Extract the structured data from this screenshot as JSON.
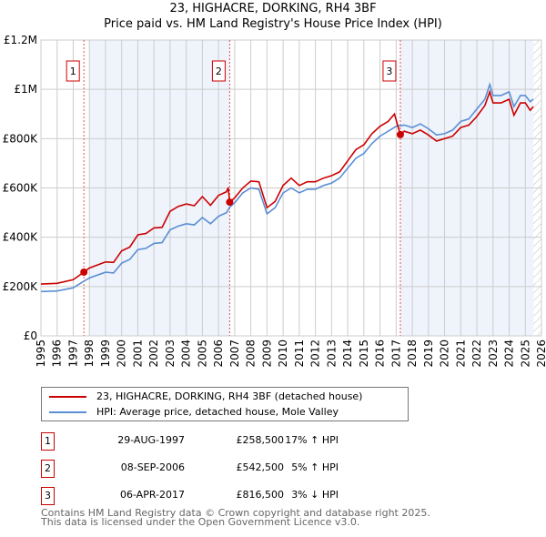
{
  "title_line1": "23, HIGHACRE, DORKING, RH4 3BF",
  "title_line2": "Price paid vs. HM Land Registry's House Price Index (HPI)",
  "chart_data": {
    "type": "line",
    "ylim": [
      0,
      1200000
    ],
    "xlim": [
      1995,
      2026
    ],
    "y_ticks": [
      {
        "v": 0,
        "label": "£0"
      },
      {
        "v": 200000,
        "label": "£200K"
      },
      {
        "v": 400000,
        "label": "£400K"
      },
      {
        "v": 600000,
        "label": "£600K"
      },
      {
        "v": 800000,
        "label": "£800K"
      },
      {
        "v": 1000000,
        "label": "£1M"
      },
      {
        "v": 1200000,
        "label": "£1.2M"
      }
    ],
    "x_ticks": [
      "1995",
      "1996",
      "1997",
      "1998",
      "1999",
      "2000",
      "2001",
      "2002",
      "2003",
      "2004",
      "2005",
      "2006",
      "2007",
      "2008",
      "2009",
      "2010",
      "2011",
      "2012",
      "2013",
      "2014",
      "2015",
      "2016",
      "2017",
      "2018",
      "2019",
      "2020",
      "2021",
      "2022",
      "2023",
      "2024",
      "2025",
      "2026"
    ],
    "grid": true,
    "data_end": 2025.5,
    "colors": {
      "property": "#cc0000",
      "hpi": "#5b8fd4",
      "shade": "#eef3fc",
      "sale_line": "#e05050"
    },
    "series": [
      {
        "name": "23, HIGHACRE, DORKING, RH4 3BF (detached house)",
        "key": "property",
        "x": [
          1995,
          1996,
          1997,
          1997.66,
          1998,
          1999,
          1999.5,
          2000,
          2000.5,
          2001,
          2001.5,
          2002,
          2002.5,
          2003,
          2003.5,
          2004,
          2004.5,
          2005,
          2005.5,
          2006,
          2006.5,
          2006.6,
          2006.69,
          2007,
          2007.5,
          2008,
          2008.5,
          2009,
          2009.5,
          2010,
          2010.5,
          2011,
          2011.5,
          2012,
          2012.5,
          2013,
          2013.5,
          2014,
          2014.5,
          2015,
          2015.5,
          2016,
          2016.5,
          2016.9,
          2017.26,
          2017.5,
          2018,
          2018.5,
          2019,
          2019.5,
          2020,
          2020.5,
          2021,
          2021.5,
          2022,
          2022.5,
          2022.8,
          2023,
          2023.5,
          2024,
          2024.3,
          2024.7,
          2025,
          2025.3,
          2025.5
        ],
        "y": [
          210000,
          213000,
          228000,
          258500,
          275000,
          300000,
          298000,
          345000,
          360000,
          410000,
          415000,
          438000,
          440000,
          505000,
          525000,
          535000,
          528000,
          565000,
          530000,
          570000,
          585000,
          602000,
          542500,
          560000,
          600000,
          628000,
          625000,
          520000,
          545000,
          610000,
          640000,
          610000,
          625000,
          625000,
          640000,
          650000,
          665000,
          710000,
          755000,
          775000,
          820000,
          850000,
          870000,
          900000,
          816500,
          830000,
          820000,
          835000,
          815000,
          790000,
          800000,
          810000,
          845000,
          855000,
          890000,
          935000,
          990000,
          945000,
          945000,
          960000,
          895000,
          945000,
          945000,
          915000,
          930000
        ]
      },
      {
        "name": "HPI: Average price, detached house, Mole Valley",
        "key": "hpi",
        "x": [
          1995,
          1996,
          1997,
          1997.66,
          1998,
          1999,
          1999.5,
          2000,
          2000.5,
          2001,
          2001.5,
          2002,
          2002.5,
          2003,
          2003.5,
          2004,
          2004.5,
          2005,
          2005.5,
          2006,
          2006.5,
          2006.69,
          2007,
          2007.5,
          2008,
          2008.5,
          2009,
          2009.5,
          2010,
          2010.5,
          2011,
          2011.5,
          2012,
          2012.5,
          2013,
          2013.5,
          2014,
          2014.5,
          2015,
          2015.5,
          2016,
          2016.5,
          2017,
          2017.5,
          2018,
          2018.5,
          2019,
          2019.5,
          2020,
          2020.5,
          2021,
          2021.5,
          2022,
          2022.5,
          2022.8,
          2023,
          2023.5,
          2024,
          2024.3,
          2024.7,
          2025,
          2025.3,
          2025.5
        ],
        "y": [
          180000,
          182000,
          195000,
          222000,
          235000,
          258000,
          255000,
          295000,
          310000,
          350000,
          355000,
          375000,
          378000,
          430000,
          445000,
          455000,
          450000,
          480000,
          455000,
          485000,
          500000,
          522000,
          540000,
          580000,
          600000,
          595000,
          495000,
          520000,
          580000,
          600000,
          580000,
          595000,
          595000,
          610000,
          620000,
          640000,
          680000,
          720000,
          740000,
          780000,
          810000,
          830000,
          850000,
          855000,
          845000,
          860000,
          840000,
          815000,
          820000,
          835000,
          870000,
          880000,
          920000,
          960000,
          1020000,
          975000,
          975000,
          990000,
          930000,
          975000,
          975000,
          950000,
          960000
        ]
      }
    ],
    "sales": [
      {
        "id": "1",
        "x": 1997.66,
        "y": 258500,
        "date": "29-AUG-1997",
        "price": "£258,500",
        "hpi": "17% ↑ HPI"
      },
      {
        "id": "2",
        "x": 2006.69,
        "y": 542500,
        "date": "08-SEP-2006",
        "price": "£542,500",
        "hpi": "5% ↑ HPI"
      },
      {
        "id": "3",
        "x": 2017.26,
        "y": 816500,
        "date": "06-APR-2017",
        "price": "£816,500",
        "hpi": "3% ↓ HPI"
      }
    ]
  },
  "legend": {
    "property": "23, HIGHACRE, DORKING, RH4 3BF (detached house)",
    "hpi": "HPI: Average price, detached house, Mole Valley"
  },
  "footer": {
    "line1": "Contains HM Land Registry data © Crown copyright and database right 2025.",
    "line2": "This data is licensed under the Open Government Licence v3.0."
  }
}
